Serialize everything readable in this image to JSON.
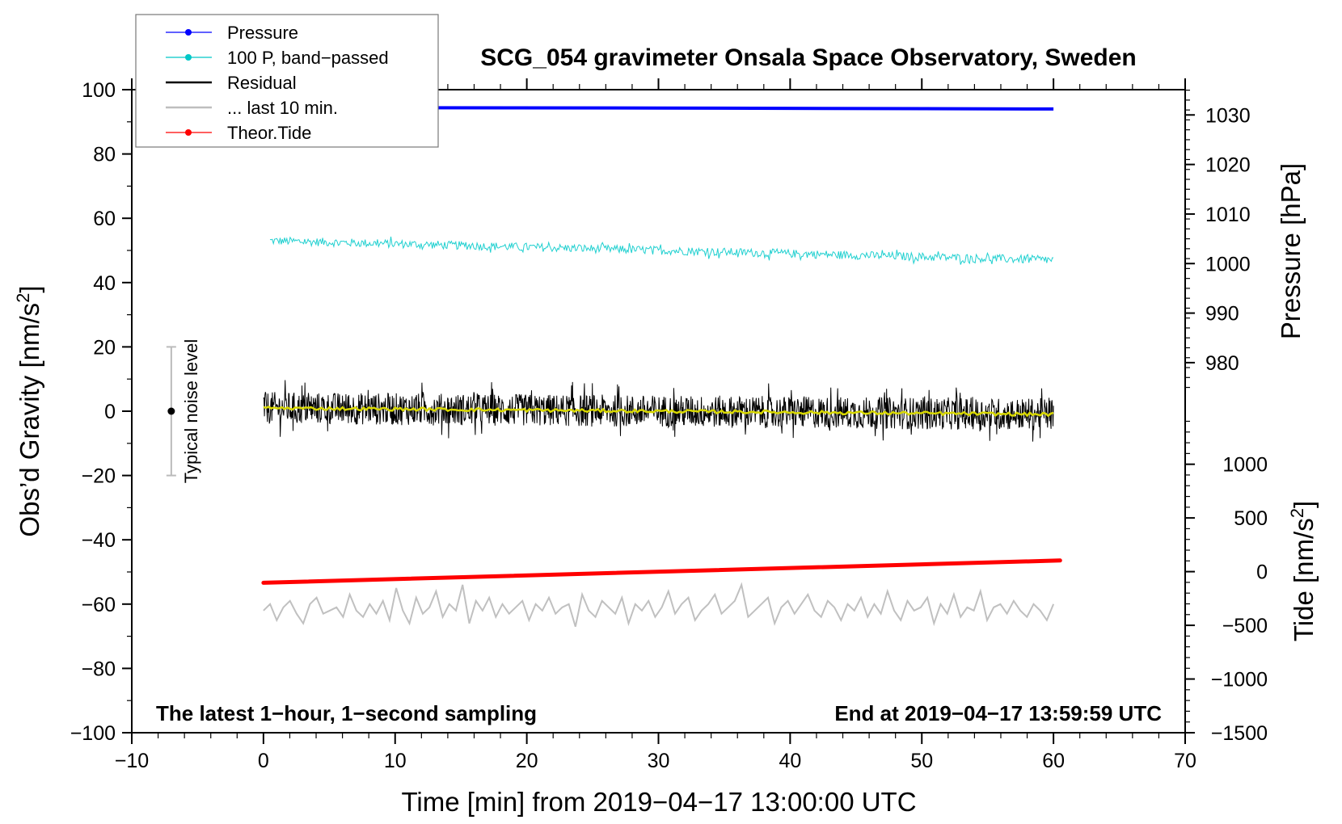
{
  "chart_data": {
    "type": "line",
    "title": "SCG_054 gravimeter Onsala Space Observatory, Sweden",
    "xlabel": "Time [min] from 2019−04−17 13:00:00 UTC",
    "ylabel": "Obs’d Gravity [nm/s",
    "ylabel_sup": "2",
    "ylabel_end": "]",
    "y2label": "Pressure [hPa]",
    "y3label": "Tide [nm/s",
    "y3label_sup": "2",
    "y3label_end": "]",
    "xlim": [
      -10,
      70
    ],
    "ylim": [
      -100,
      100
    ],
    "pressure_lim": [
      905.3,
      1035.1
    ],
    "tide_lim": [
      -1500,
      4488
    ],
    "xticks": [
      "−10",
      "0",
      "10",
      "20",
      "30",
      "40",
      "50",
      "60",
      "70"
    ],
    "xtick_values": [
      -10,
      0,
      10,
      20,
      30,
      40,
      50,
      60,
      70
    ],
    "yticks": [
      "100",
      "80",
      "60",
      "40",
      "20",
      "0",
      "−20",
      "−40",
      "−60",
      "−80",
      "−100"
    ],
    "ytick_values": [
      100,
      80,
      60,
      40,
      20,
      0,
      -20,
      -40,
      -60,
      -80,
      -100
    ],
    "pressure_ticks": [
      "1030",
      "1020",
      "1010",
      "1000",
      "990",
      "980"
    ],
    "pressure_tick_values": [
      1030,
      1020,
      1010,
      1000,
      990,
      980
    ],
    "tide_ticks": [
      "1000",
      "500",
      "0",
      "−500",
      "−1000",
      "−1500"
    ],
    "tide_tick_values": [
      1000,
      500,
      0,
      -500,
      -1000,
      -1500
    ],
    "legend": {
      "placement": "top-left",
      "entries": [
        {
          "label": "Pressure",
          "color": "#0000ff",
          "marker": true
        },
        {
          "label": "100 P, band−passed",
          "color": "#00c8c8",
          "marker": true
        },
        {
          "label": "Residual",
          "color": "#000000",
          "marker": false
        },
        {
          "label": "... last 10 min.",
          "color": "#bebebe",
          "marker": false
        },
        {
          "label": "Theor.Tide",
          "color": "#ff0000",
          "marker": true
        }
      ]
    },
    "series": [
      {
        "name": "Pressure",
        "axis": "pressure",
        "x_range": [
          0,
          60
        ],
        "start": 1031.5,
        "end": 1031.2,
        "color": "#0000ff"
      },
      {
        "name": "100 P, band-passed",
        "axis": "gravity",
        "x_range": [
          0.5,
          60
        ],
        "start": 53,
        "end": 47,
        "noise_amplitude": 1.3,
        "color": "#20d0d0"
      },
      {
        "name": "Residual",
        "axis": "gravity",
        "x_range": [
          0,
          60
        ],
        "start": 1,
        "end": -1,
        "noise_amplitude": 5,
        "color": "#000000"
      },
      {
        "name": "Residual smoothed",
        "axis": "gravity",
        "x_range": [
          0,
          60
        ],
        "start": 1,
        "end": -1,
        "noise_amplitude": 0.5,
        "color": "#d8d800"
      },
      {
        "name": "... last 10 min.",
        "axis": "gravity",
        "x_range": [
          0,
          60
        ],
        "color": "#c0c0c0",
        "values": [
          -62,
          -60,
          -65,
          -61,
          -59,
          -63,
          -66,
          -60,
          -58,
          -63,
          -62,
          -61,
          -64,
          -57,
          -62,
          -64,
          -60,
          -63,
          -59,
          -65,
          -55,
          -62,
          -66,
          -58,
          -63,
          -61,
          -56,
          -64,
          -60,
          -62,
          -54,
          -66,
          -59,
          -62,
          -58,
          -64,
          -60,
          -63,
          -61,
          -59,
          -65,
          -60,
          -62,
          -58,
          -63,
          -61,
          -60,
          -67,
          -57,
          -62,
          -64,
          -59,
          -61,
          -63,
          -58,
          -66,
          -60,
          -62,
          -59,
          -64,
          -61,
          -56,
          -63,
          -60,
          -58,
          -65,
          -62,
          -60,
          -57,
          -63,
          -61,
          -59,
          -54,
          -64,
          -62,
          -60,
          -58,
          -66,
          -61,
          -59,
          -63,
          -60,
          -57,
          -62,
          -64,
          -59,
          -61,
          -65,
          -60,
          -62,
          -58,
          -64,
          -60,
          -63,
          -56,
          -62,
          -65,
          -59,
          -62,
          -61,
          -58,
          -66,
          -60,
          -63,
          -57,
          -64,
          -61,
          -62,
          -56,
          -65,
          -61,
          -60,
          -63,
          -59,
          -62,
          -64,
          -60,
          -62,
          -65,
          -60
        ]
      },
      {
        "name": "Theor.Tide",
        "axis": "tide",
        "x_range": [
          0,
          60.5
        ],
        "start": -104,
        "end": 104,
        "color": "#ff0000"
      }
    ],
    "noise_bar": {
      "label": "Typical noise level",
      "x": -7,
      "range": [
        -20,
        20
      ],
      "center": 0
    },
    "annotation_left": "The latest 1−hour, 1−second sampling",
    "annotation_right": "End at 2019−04−17 13:59:59 UTC"
  }
}
